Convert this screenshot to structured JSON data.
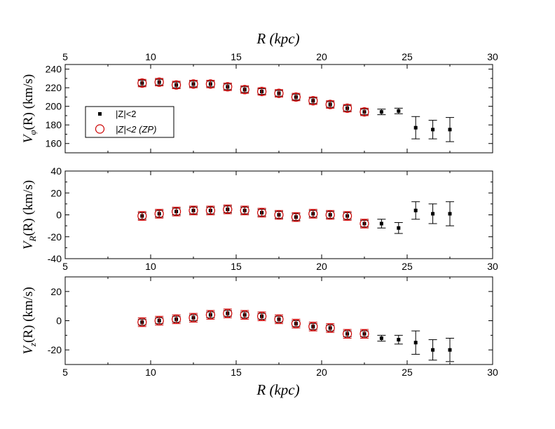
{
  "figure": {
    "top_axis_title": "R  (kpc)",
    "bottom_axis_title": "R (kpc)"
  },
  "legend": {
    "entries": [
      {
        "label": "|Z|<2",
        "marker": "filled-square",
        "color": "#000000"
      },
      {
        "label": "|Z|<2 (ZP)",
        "marker": "open-circle",
        "color": "#cc0000"
      }
    ]
  },
  "chart_data": [
    {
      "type": "scatter",
      "ylabel": "V_φ(R) (km/s)",
      "ylabel_main": "V",
      "ylabel_sub": "φ",
      "ylabel_rest": "(R) (km/s)",
      "xlabel": "R  (kpc)",
      "xlim": [
        5,
        30
      ],
      "ylim": [
        150,
        245
      ],
      "xticks": [
        5,
        10,
        15,
        20,
        25,
        30
      ],
      "yticks": [
        160,
        180,
        200,
        220,
        240
      ],
      "x_tick_labels_top": [
        "5",
        "10",
        "15",
        "20",
        "25",
        "30"
      ],
      "y_tick_labels": [
        "160",
        "180",
        "200",
        "220",
        "240"
      ],
      "legend_position": "middle-left",
      "series": [
        {
          "name": "|Z|<2",
          "x": [
            9.5,
            10.5,
            11.5,
            12.5,
            13.5,
            14.5,
            15.5,
            16.5,
            17.5,
            18.5,
            19.5,
            20.5,
            21.5,
            22.5,
            23.5,
            24.5,
            25.5,
            26.5,
            27.5
          ],
          "y": [
            225,
            226,
            223,
            224,
            224,
            221,
            218,
            216,
            214,
            210,
            206,
            202,
            198,
            194,
            194,
            195,
            177,
            175,
            175
          ],
          "err": [
            3,
            3,
            3,
            3,
            3,
            3,
            3,
            3,
            3,
            3,
            3,
            3,
            3,
            3,
            3,
            3,
            12,
            10,
            13
          ]
        },
        {
          "name": "|Z|<2 (ZP)",
          "x": [
            9.5,
            10.5,
            11.5,
            12.5,
            13.5,
            14.5,
            15.5,
            16.5,
            17.5,
            18.5,
            19.5,
            20.5,
            21.5,
            22.5
          ],
          "y": [
            225,
            226,
            223,
            224,
            224,
            221,
            218,
            216,
            214,
            210,
            206,
            202,
            198,
            194
          ],
          "err": [
            4,
            4,
            4,
            4,
            4,
            4,
            4,
            4,
            4,
            4,
            4,
            4,
            4,
            4
          ]
        }
      ]
    },
    {
      "type": "scatter",
      "ylabel": "V_R(R)  (km/s)",
      "ylabel_main": "V",
      "ylabel_sub": "R",
      "ylabel_rest": "(R)  (km/s)",
      "xlabel": "",
      "xlim": [
        5,
        30
      ],
      "ylim": [
        -40,
        40
      ],
      "xticks": [
        5,
        10,
        15,
        20,
        25,
        30
      ],
      "yticks": [
        -40,
        -20,
        0,
        20,
        40
      ],
      "x_tick_labels": [
        "5",
        "10",
        "15",
        "20",
        "25",
        "30"
      ],
      "y_tick_labels": [
        "-40",
        "-20",
        "0",
        "20",
        "40"
      ],
      "series": [
        {
          "name": "|Z|<2",
          "x": [
            9.5,
            10.5,
            11.5,
            12.5,
            13.5,
            14.5,
            15.5,
            16.5,
            17.5,
            18.5,
            19.5,
            20.5,
            21.5,
            22.5,
            23.5,
            24.5,
            25.5,
            26.5,
            27.5
          ],
          "y": [
            -1,
            1,
            3,
            4,
            4,
            5,
            4,
            2,
            0,
            -2,
            1,
            0,
            -1,
            -8,
            -8,
            -12,
            4,
            1,
            1
          ],
          "err": [
            3,
            3,
            3,
            3,
            3,
            3,
            3,
            3,
            3,
            3,
            3,
            3,
            3,
            3,
            4,
            5,
            8,
            9,
            11
          ]
        },
        {
          "name": "|Z|<2 (ZP)",
          "x": [
            9.5,
            10.5,
            11.5,
            12.5,
            13.5,
            14.5,
            15.5,
            16.5,
            17.5,
            18.5,
            19.5,
            20.5,
            21.5,
            22.5
          ],
          "y": [
            -1,
            1,
            3,
            4,
            4,
            5,
            4,
            2,
            0,
            -2,
            1,
            0,
            -1,
            -8
          ],
          "err": [
            4,
            4,
            4,
            4,
            4,
            4,
            4,
            4,
            4,
            4,
            4,
            4,
            4,
            4
          ]
        }
      ]
    },
    {
      "type": "scatter",
      "ylabel": "V_z(R) (km/s)",
      "ylabel_main": "V",
      "ylabel_sub": "z",
      "ylabel_rest": "(R) (km/s)",
      "xlabel": "R (kpc)",
      "xlim": [
        5,
        30
      ],
      "ylim": [
        -30,
        30
      ],
      "xticks": [
        5,
        10,
        15,
        20,
        25,
        30
      ],
      "yticks": [
        -20,
        0,
        20
      ],
      "x_tick_labels": [
        "5",
        "10",
        "15",
        "20",
        "25",
        "30"
      ],
      "y_tick_labels": [
        "-20",
        "0",
        "20"
      ],
      "series": [
        {
          "name": "|Z|<2",
          "x": [
            9.5,
            10.5,
            11.5,
            12.5,
            13.5,
            14.5,
            15.5,
            16.5,
            17.5,
            18.5,
            19.5,
            20.5,
            21.5,
            22.5,
            23.5,
            24.5,
            25.5,
            26.5,
            27.5
          ],
          "y": [
            -1,
            0,
            1,
            2,
            4,
            5,
            4,
            3,
            1,
            -2,
            -4,
            -5,
            -9,
            -9,
            -12,
            -13,
            -15,
            -20,
            -20
          ],
          "err": [
            2,
            2,
            2,
            2,
            2,
            2,
            2,
            2,
            2,
            2,
            2,
            2,
            2,
            2,
            2,
            3,
            8,
            7,
            8
          ]
        },
        {
          "name": "|Z|<2 (ZP)",
          "x": [
            9.5,
            10.5,
            11.5,
            12.5,
            13.5,
            14.5,
            15.5,
            16.5,
            17.5,
            18.5,
            19.5,
            20.5,
            21.5,
            22.5
          ],
          "y": [
            -1,
            0,
            1,
            2,
            4,
            5,
            4,
            3,
            1,
            -2,
            -4,
            -5,
            -9,
            -9
          ],
          "err": [
            3,
            3,
            3,
            3,
            3,
            3,
            3,
            3,
            3,
            3,
            3,
            3,
            3,
            3
          ]
        }
      ]
    }
  ]
}
